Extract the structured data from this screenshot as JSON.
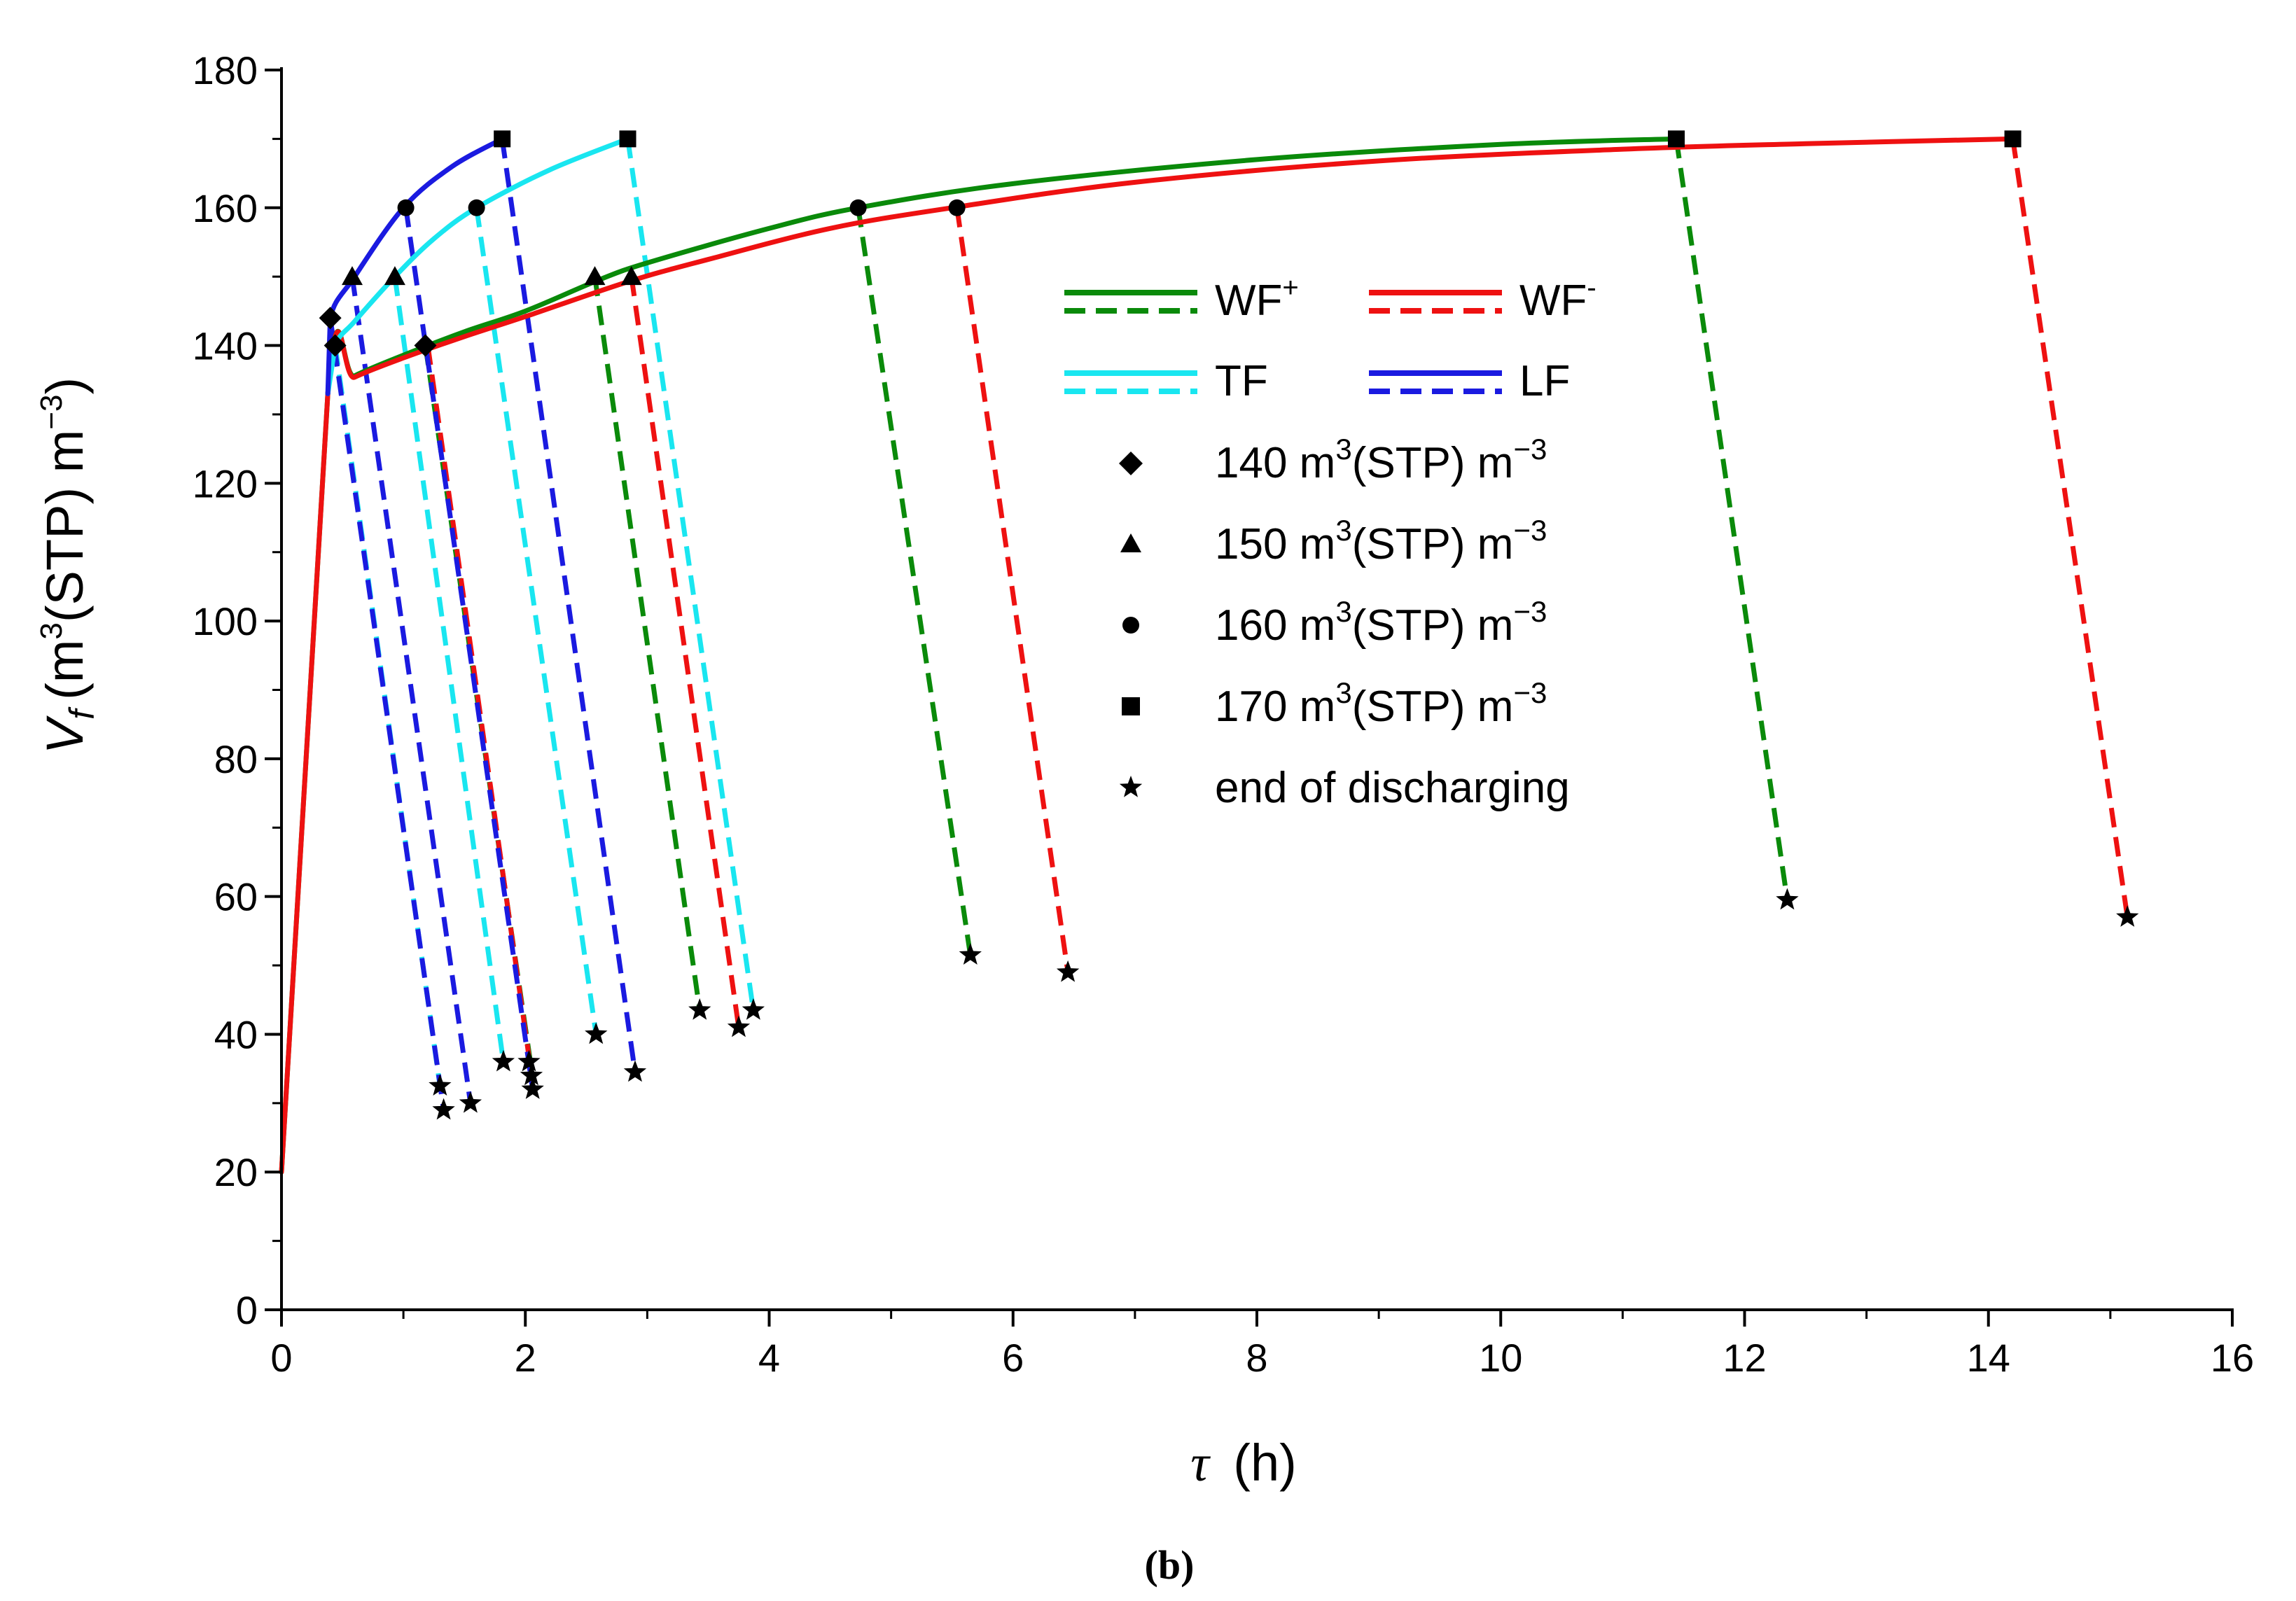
{
  "panel_label": "(b)",
  "chart_data": {
    "type": "line",
    "title": "",
    "xlabel": {
      "symbol": "τ",
      "unit": "(h)"
    },
    "ylabel": {
      "symbol": "V",
      "subscript": "f",
      "unit_open": "(m",
      "unit_sup": "3",
      "unit_mid": "(STP) m",
      "unit_sup2": "−3",
      "unit_close": ")"
    },
    "xlim": [
      0,
      16
    ],
    "ylim": [
      0,
      180
    ],
    "xticks": [
      0,
      2,
      4,
      6,
      8,
      10,
      12,
      14,
      16
    ],
    "yticks": [
      0,
      20,
      40,
      60,
      80,
      100,
      120,
      140,
      160,
      180
    ],
    "grid": false,
    "legend_position": "center-right",
    "legend": {
      "WF_plus": {
        "label": "WF",
        "sup": "+"
      },
      "WF_minus": {
        "label": "WF",
        "sup": "-"
      },
      "TF": {
        "label": "TF"
      },
      "LF": {
        "label": "LF"
      },
      "m140": {
        "text": "140 m",
        "sup": "3",
        "tail": "(STP) m",
        "sup2": "−3"
      },
      "m150": {
        "text": "150 m",
        "sup": "3",
        "tail": "(STP) m",
        "sup2": "−3"
      },
      "m160": {
        "text": "160 m",
        "sup": "3",
        "tail": "(STP) m",
        "sup2": "−3"
      },
      "m170": {
        "text": "170 m",
        "sup": "3",
        "tail": "(STP) m",
        "sup2": "−3"
      },
      "end": {
        "text": "end of discharging"
      }
    },
    "colors": {
      "WF_plus": "#0a8a0a",
      "WF_minus": "#ee1111",
      "TF": "#19e6f0",
      "LF": "#1a1ae0",
      "marker": "#000000"
    },
    "charging_curves": [
      {
        "name": "WF+",
        "color_key": "WF_plus",
        "points": [
          [
            0,
            20
          ],
          [
            0.38,
            133
          ],
          [
            0.6,
            135.6
          ],
          [
            1.0,
            138.6
          ],
          [
            1.5,
            142
          ],
          [
            2.0,
            145
          ],
          [
            2.6,
            149.5
          ],
          [
            3.0,
            152
          ],
          [
            4.0,
            157
          ],
          [
            4.73,
            160
          ],
          [
            6.0,
            163.5
          ],
          [
            8.0,
            167
          ],
          [
            10.0,
            169.2
          ],
          [
            11.44,
            170
          ]
        ]
      },
      {
        "name": "WF-",
        "color_key": "WF_minus",
        "points": [
          [
            0,
            20
          ],
          [
            0.38,
            133
          ],
          [
            0.6,
            135.4
          ],
          [
            1.0,
            138.2
          ],
          [
            1.5,
            141.3
          ],
          [
            2.0,
            144.2
          ],
          [
            2.85,
            149.3
          ],
          [
            3.5,
            152.5
          ],
          [
            4.5,
            157
          ],
          [
            5.5,
            160
          ],
          [
            7.0,
            163.7
          ],
          [
            9.0,
            166.8
          ],
          [
            11.0,
            168.5
          ],
          [
            12.5,
            169.3
          ],
          [
            14.2,
            170
          ]
        ]
      },
      {
        "name": "TF",
        "color_key": "TF",
        "points": [
          [
            0.38,
            133
          ],
          [
            0.44,
            140
          ],
          [
            0.6,
            143.5
          ],
          [
            0.93,
            150
          ],
          [
            1.25,
            155.5
          ],
          [
            1.6,
            160
          ],
          [
            2.2,
            165.5
          ],
          [
            2.84,
            170
          ]
        ]
      },
      {
        "name": "LF",
        "color_key": "LF",
        "points": [
          [
            0.38,
            133
          ],
          [
            0.4,
            144
          ],
          [
            0.6,
            150
          ],
          [
            1.0,
            160
          ],
          [
            1.4,
            166
          ],
          [
            1.81,
            170
          ]
        ]
      }
    ],
    "discharge_lines": [
      {
        "color_key": "WF_plus",
        "start": [
          1.18,
          140
        ],
        "end": [
          2.05,
          35
        ]
      },
      {
        "color_key": "WF_plus",
        "start": [
          2.57,
          150
        ],
        "end": [
          3.43,
          43.5
        ]
      },
      {
        "color_key": "WF_plus",
        "start": [
          4.73,
          160
        ],
        "end": [
          5.65,
          51.5
        ]
      },
      {
        "color_key": "WF_plus",
        "start": [
          11.44,
          170
        ],
        "end": [
          12.35,
          59.5
        ]
      },
      {
        "color_key": "WF_minus",
        "start": [
          1.2,
          140
        ],
        "end": [
          2.06,
          33
        ]
      },
      {
        "color_key": "WF_minus",
        "start": [
          2.87,
          150
        ],
        "end": [
          3.75,
          41
        ]
      },
      {
        "color_key": "WF_minus",
        "start": [
          5.54,
          160
        ],
        "end": [
          6.45,
          49
        ]
      },
      {
        "color_key": "WF_minus",
        "start": [
          14.2,
          170
        ],
        "end": [
          15.14,
          57
        ]
      },
      {
        "color_key": "TF",
        "start": [
          0.44,
          140
        ],
        "end": [
          1.3,
          32.5
        ]
      },
      {
        "color_key": "TF",
        "start": [
          0.93,
          150
        ],
        "end": [
          1.82,
          36
        ]
      },
      {
        "color_key": "TF",
        "start": [
          1.6,
          160
        ],
        "end": [
          2.58,
          40
        ]
      },
      {
        "color_key": "TF",
        "start": [
          2.84,
          170
        ],
        "end": [
          3.87,
          43.5
        ]
      },
      {
        "color_key": "LF",
        "start": [
          0.4,
          144
        ],
        "end": [
          1.33,
          29
        ]
      },
      {
        "color_key": "LF",
        "start": [
          0.58,
          150
        ],
        "end": [
          1.55,
          30
        ]
      },
      {
        "color_key": "LF",
        "start": [
          1.02,
          160
        ],
        "end": [
          2.06,
          32
        ]
      },
      {
        "color_key": "LF",
        "start": [
          1.81,
          170
        ],
        "end": [
          2.9,
          34.5
        ]
      }
    ],
    "markers_140": [
      [
        0.4,
        144
      ],
      [
        0.44,
        140
      ],
      [
        1.18,
        140
      ]
    ],
    "markers_150": [
      [
        0.58,
        150
      ],
      [
        0.93,
        150
      ],
      [
        2.57,
        150
      ],
      [
        2.87,
        150
      ]
    ],
    "markers_160": [
      [
        1.02,
        160
      ],
      [
        1.6,
        160
      ],
      [
        4.73,
        160
      ],
      [
        5.54,
        160
      ]
    ],
    "markers_170": [
      [
        1.81,
        170
      ],
      [
        2.84,
        170
      ],
      [
        11.44,
        170
      ],
      [
        14.2,
        170
      ]
    ],
    "markers_end": [
      [
        1.3,
        32.5
      ],
      [
        1.33,
        29
      ],
      [
        1.55,
        30
      ],
      [
        1.82,
        36
      ],
      [
        2.03,
        36
      ],
      [
        2.05,
        34
      ],
      [
        2.06,
        32
      ],
      [
        2.58,
        40
      ],
      [
        2.9,
        34.5
      ],
      [
        3.43,
        43.5
      ],
      [
        3.75,
        41
      ],
      [
        3.87,
        43.5
      ],
      [
        5.65,
        51.5
      ],
      [
        6.45,
        49
      ],
      [
        12.35,
        59.5
      ],
      [
        15.14,
        57
      ]
    ]
  }
}
